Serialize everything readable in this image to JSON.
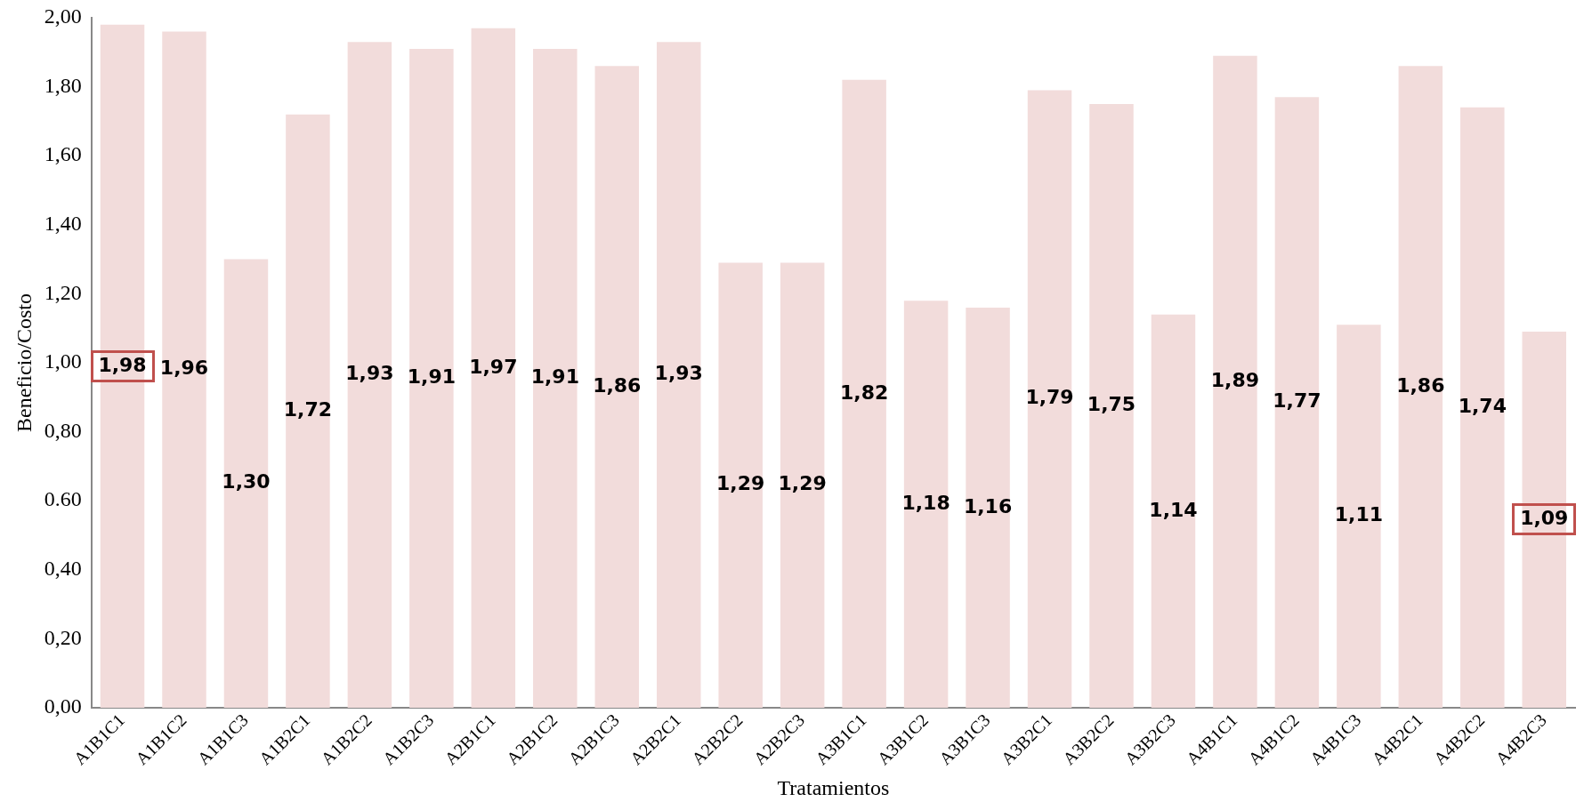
{
  "chart_data": {
    "type": "bar",
    "xlabel": "Tratamientos",
    "ylabel": "Beneficio/Costo",
    "categories": [
      "A1B1C1",
      "A1B1C2",
      "A1B1C3",
      "A1B2C1",
      "A1B2C2",
      "A1B2C3",
      "A2B1C1",
      "A2B1C2",
      "A2B1C3",
      "A2B2C1",
      "A2B2C2",
      "A2B2C3",
      "A3B1C1",
      "A3B1C2",
      "A3B1C3",
      "A3B2C1",
      "A3B2C2",
      "A3B2C3",
      "A4B1C1",
      "A4B1C2",
      "A4B1C3",
      "A4B2C1",
      "A4B2C2",
      "A4B2C3"
    ],
    "values": [
      1.98,
      1.96,
      1.3,
      1.72,
      1.93,
      1.91,
      1.97,
      1.91,
      1.86,
      1.93,
      1.29,
      1.29,
      1.82,
      1.18,
      1.16,
      1.79,
      1.75,
      1.14,
      1.89,
      1.77,
      1.11,
      1.86,
      1.74,
      1.09
    ],
    "value_labels": [
      "1,98",
      "1,96",
      "1,30",
      "1,72",
      "1,93",
      "1,91",
      "1,97",
      "1,91",
      "1,86",
      "1,93",
      "1,29",
      "1,29",
      "1,82",
      "1,18",
      "1,16",
      "1,79",
      "1,75",
      "1,14",
      "1,89",
      "1,77",
      "1,11",
      "1,86",
      "1,74",
      "1,09"
    ],
    "color": "#f2dcdb",
    "ylim": [
      0,
      2
    ],
    "yticks": [
      {
        "value": 0,
        "label": "0,00"
      },
      {
        "value": 0.2,
        "label": "0,20"
      },
      {
        "value": 0.4,
        "label": "0,40"
      },
      {
        "value": 0.6,
        "label": "0.60"
      },
      {
        "value": 0.8,
        "label": "0,80"
      },
      {
        "value": 1,
        "label": "1,00"
      },
      {
        "value": 1.2,
        "label": "1,20"
      },
      {
        "value": 1.4,
        "label": "1,40"
      },
      {
        "value": 1.6,
        "label": "1,60"
      },
      {
        "value": 1.8,
        "label": "1,80"
      },
      {
        "value": 2,
        "label": "2,00"
      }
    ],
    "grid": false,
    "legend": false
  }
}
